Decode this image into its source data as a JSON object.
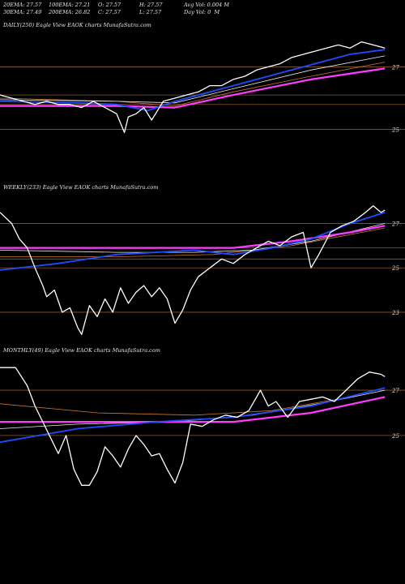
{
  "header": {
    "row1": [
      "20EMA: 27.57",
      "100EMA: 27.21",
      "O: 27.57",
      "H: 27.57",
      "Avg Vol: 0.004 M"
    ],
    "row2": [
      "30EMA: 27.49",
      "200EMA: 26.82",
      "C: 27.57",
      "L: 27.57",
      "Day Vol: 0  M"
    ]
  },
  "colors": {
    "background": "#000000",
    "price": "#ffffff",
    "ema_blue": "#1e4dff",
    "ema_magenta": "#ff3cff",
    "ema_white": "#f0f0f0",
    "ema_orange": "#c87832",
    "gridline": "#8a5a2e"
  },
  "chart_data": [
    {
      "type": "line",
      "title": "DAILY(250) Eagle  View EAOK charts MunafaSutra.com",
      "yticks": [
        "27",
        "25"
      ],
      "ylim": [
        24.6,
        28.1
      ],
      "xlim": [
        0,
        100
      ],
      "series": [
        {
          "role": "price",
          "points": [
            [
              0,
              26.1
            ],
            [
              3,
              26.0
            ],
            [
              6,
              25.9
            ],
            [
              9,
              25.8
            ],
            [
              12,
              25.9
            ],
            [
              15,
              25.8
            ],
            [
              18,
              25.8
            ],
            [
              21,
              25.7
            ],
            [
              24,
              25.9
            ],
            [
              27,
              25.7
            ],
            [
              30,
              25.5
            ],
            [
              32,
              24.9
            ],
            [
              33,
              25.4
            ],
            [
              35,
              25.5
            ],
            [
              37,
              25.7
            ],
            [
              39,
              25.3
            ],
            [
              40,
              25.5
            ],
            [
              42,
              25.9
            ],
            [
              45,
              26.0
            ],
            [
              48,
              26.1
            ],
            [
              51,
              26.2
            ],
            [
              54,
              26.4
            ],
            [
              57,
              26.4
            ],
            [
              60,
              26.6
            ],
            [
              63,
              26.7
            ],
            [
              66,
              26.9
            ],
            [
              69,
              27.0
            ],
            [
              72,
              27.1
            ],
            [
              75,
              27.3
            ],
            [
              78,
              27.4
            ],
            [
              81,
              27.5
            ],
            [
              84,
              27.6
            ],
            [
              87,
              27.7
            ],
            [
              90,
              27.6
            ],
            [
              93,
              27.8
            ],
            [
              96,
              27.7
            ],
            [
              99,
              27.6
            ]
          ]
        },
        {
          "role": "ema-blue",
          "points": [
            [
              0,
              25.9
            ],
            [
              20,
              25.85
            ],
            [
              30,
              25.8
            ],
            [
              38,
              25.6
            ],
            [
              45,
              25.9
            ],
            [
              60,
              26.4
            ],
            [
              75,
              26.9
            ],
            [
              90,
              27.4
            ],
            [
              99,
              27.55
            ]
          ]
        },
        {
          "role": "ema-magenta",
          "points": [
            [
              0,
              25.75
            ],
            [
              30,
              25.75
            ],
            [
              45,
              25.7
            ],
            [
              60,
              26.1
            ],
            [
              80,
              26.6
            ],
            [
              99,
              26.95
            ]
          ]
        },
        {
          "role": "ema-white",
          "points": [
            [
              0,
              25.95
            ],
            [
              30,
              25.9
            ],
            [
              45,
              25.85
            ],
            [
              60,
              26.3
            ],
            [
              80,
              26.9
            ],
            [
              99,
              27.35
            ]
          ]
        },
        {
          "role": "ema-orange",
          "points": [
            [
              0,
              26.0
            ],
            [
              30,
              25.9
            ],
            [
              45,
              25.75
            ],
            [
              60,
              26.2
            ],
            [
              80,
              26.7
            ],
            [
              99,
              27.15
            ]
          ]
        }
      ],
      "hlines": [
        27.0,
        26.1,
        25.8,
        25.0
      ]
    },
    {
      "type": "line",
      "title": "WEEKLY(233) Eagle  View EAOK charts MunafaSutra.com",
      "yticks": [
        "27",
        "25",
        "23"
      ],
      "ylim": [
        21.9,
        28.3
      ],
      "xlim": [
        0,
        100
      ],
      "series": [
        {
          "role": "price",
          "points": [
            [
              0,
              27.5
            ],
            [
              3,
              27.0
            ],
            [
              5,
              26.3
            ],
            [
              7,
              25.9
            ],
            [
              9,
              25.0
            ],
            [
              11,
              24.2
            ],
            [
              12,
              23.7
            ],
            [
              14,
              24.0
            ],
            [
              16,
              23.0
            ],
            [
              18,
              23.2
            ],
            [
              20,
              22.3
            ],
            [
              21,
              22.0
            ],
            [
              23,
              23.3
            ],
            [
              25,
              22.8
            ],
            [
              27,
              23.6
            ],
            [
              29,
              23.0
            ],
            [
              31,
              24.1
            ],
            [
              33,
              23.4
            ],
            [
              35,
              23.9
            ],
            [
              37,
              24.2
            ],
            [
              39,
              23.7
            ],
            [
              41,
              24.1
            ],
            [
              43,
              23.6
            ],
            [
              45,
              22.5
            ],
            [
              47,
              23.1
            ],
            [
              49,
              24.0
            ],
            [
              51,
              24.6
            ],
            [
              54,
              25.0
            ],
            [
              57,
              25.4
            ],
            [
              60,
              25.2
            ],
            [
              63,
              25.6
            ],
            [
              66,
              25.9
            ],
            [
              69,
              26.2
            ],
            [
              72,
              26.0
            ],
            [
              75,
              26.4
            ],
            [
              78,
              26.6
            ],
            [
              80,
              25.0
            ],
            [
              82,
              25.6
            ],
            [
              85,
              26.6
            ],
            [
              88,
              26.9
            ],
            [
              91,
              27.1
            ],
            [
              94,
              27.5
            ],
            [
              96,
              27.8
            ],
            [
              98,
              27.5
            ],
            [
              99,
              27.6
            ]
          ]
        },
        {
          "role": "ema-blue",
          "points": [
            [
              0,
              24.9
            ],
            [
              15,
              25.2
            ],
            [
              30,
              25.6
            ],
            [
              50,
              25.8
            ],
            [
              60,
              25.6
            ],
            [
              70,
              25.9
            ],
            [
              80,
              26.3
            ],
            [
              90,
              27.0
            ],
            [
              99,
              27.5
            ]
          ]
        },
        {
          "role": "ema-magenta",
          "points": [
            [
              0,
              25.9
            ],
            [
              30,
              25.9
            ],
            [
              50,
              25.9
            ],
            [
              60,
              25.9
            ],
            [
              75,
              26.2
            ],
            [
              90,
              26.6
            ],
            [
              99,
              26.9
            ]
          ]
        },
        {
          "role": "ema-white",
          "points": [
            [
              0,
              25.8
            ],
            [
              30,
              25.7
            ],
            [
              50,
              25.7
            ],
            [
              65,
              25.8
            ],
            [
              80,
              26.2
            ],
            [
              99,
              27.0
            ]
          ]
        },
        {
          "role": "ema-orange",
          "points": [
            [
              0,
              25.5
            ],
            [
              30,
              25.5
            ],
            [
              55,
              25.6
            ],
            [
              75,
              26.0
            ],
            [
              99,
              26.8
            ]
          ]
        }
      ],
      "hlines": [
        27.0,
        25.9,
        25.4,
        25.0,
        23.0
      ]
    },
    {
      "type": "line",
      "title": "MONTHLY(49) Eagle  View EAOK charts MunafaSutra.com",
      "yticks": [
        "27",
        "25"
      ],
      "ylim": [
        22.2,
        28.4
      ],
      "xlim": [
        0,
        100
      ],
      "series": [
        {
          "role": "price",
          "points": [
            [
              0,
              28.0
            ],
            [
              4,
              28.0
            ],
            [
              7,
              27.2
            ],
            [
              9,
              26.3
            ],
            [
              11,
              25.6
            ],
            [
              13,
              24.9
            ],
            [
              15,
              24.2
            ],
            [
              17,
              25.0
            ],
            [
              19,
              23.5
            ],
            [
              21,
              22.8
            ],
            [
              23,
              22.8
            ],
            [
              25,
              23.4
            ],
            [
              27,
              24.5
            ],
            [
              29,
              24.1
            ],
            [
              31,
              23.6
            ],
            [
              33,
              24.4
            ],
            [
              35,
              25.0
            ],
            [
              37,
              24.6
            ],
            [
              39,
              24.1
            ],
            [
              41,
              24.2
            ],
            [
              43,
              23.5
            ],
            [
              45,
              22.9
            ],
            [
              47,
              23.8
            ],
            [
              49,
              25.5
            ],
            [
              52,
              25.4
            ],
            [
              55,
              25.7
            ],
            [
              58,
              25.9
            ],
            [
              61,
              25.8
            ],
            [
              64,
              26.1
            ],
            [
              67,
              27.0
            ],
            [
              69,
              26.3
            ],
            [
              71,
              26.5
            ],
            [
              74,
              25.8
            ],
            [
              77,
              26.5
            ],
            [
              80,
              26.6
            ],
            [
              83,
              26.7
            ],
            [
              86,
              26.5
            ],
            [
              89,
              27.0
            ],
            [
              92,
              27.5
            ],
            [
              95,
              27.8
            ],
            [
              98,
              27.7
            ],
            [
              99,
              27.6
            ]
          ]
        },
        {
          "role": "ema-blue",
          "points": [
            [
              0,
              24.7
            ],
            [
              20,
              25.3
            ],
            [
              40,
              25.6
            ],
            [
              60,
              25.8
            ],
            [
              80,
              26.3
            ],
            [
              99,
              27.1
            ]
          ]
        },
        {
          "role": "ema-magenta",
          "points": [
            [
              0,
              25.6
            ],
            [
              30,
              25.6
            ],
            [
              60,
              25.6
            ],
            [
              80,
              26.0
            ],
            [
              99,
              26.7
            ]
          ]
        },
        {
          "role": "ema-white",
          "points": [
            [
              0,
              25.3
            ],
            [
              20,
              25.5
            ],
            [
              45,
              25.6
            ],
            [
              65,
              25.9
            ],
            [
              85,
              26.5
            ],
            [
              99,
              27.0
            ]
          ]
        },
        {
          "role": "ema-orange",
          "points": [
            [
              0,
              26.4
            ],
            [
              25,
              26.0
            ],
            [
              50,
              25.9
            ],
            [
              70,
              26.1
            ],
            [
              90,
              26.7
            ],
            [
              99,
              27.1
            ]
          ]
        }
      ],
      "hlines": [
        27.0,
        25.0
      ]
    }
  ]
}
